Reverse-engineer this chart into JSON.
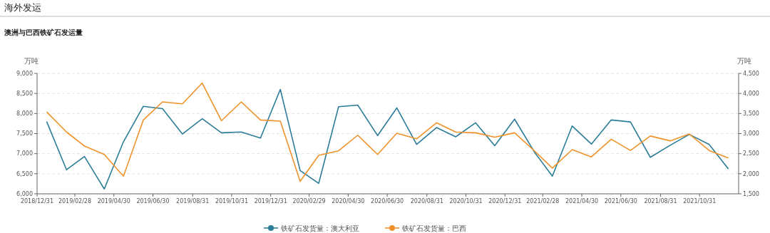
{
  "chart_data": {
    "type": "line",
    "title": "海外发运",
    "subtitle": "澳洲与巴西铁矿石发运量",
    "ylabel": "万吨",
    "y2label": "万吨",
    "x": [
      "2019-01-15",
      "2019-02-15",
      "2019-03-15",
      "2019-04-15",
      "2019-05-15",
      "2019-06-15",
      "2019-07-15",
      "2019-08-15",
      "2019-09-15",
      "2019-10-15",
      "2019-11-15",
      "2019-12-15",
      "2020-01-15",
      "2020-02-15",
      "2020-03-15",
      "2020-04-15",
      "2020-05-15",
      "2020-06-15",
      "2020-07-15",
      "2020-08-15",
      "2020-09-15",
      "2020-10-15",
      "2020-11-15",
      "2020-12-15",
      "2021-01-15",
      "2021-02-15",
      "2021-03-15",
      "2021-04-15",
      "2021-05-15",
      "2021-06-15",
      "2021-07-15",
      "2021-08-15",
      "2021-09-15",
      "2021-10-15",
      "2021-11-15",
      "2021-12-15"
    ],
    "xlim": [
      "2018-12-31",
      "2021-12-31"
    ],
    "xticks": [
      {
        "value": "2018-12-31",
        "label": "2018/12/31"
      },
      {
        "value": "2019-02-28",
        "label": "2019/02/28"
      },
      {
        "value": "2019-04-30",
        "label": "2019/04/30"
      },
      {
        "value": "2019-06-30",
        "label": "2019/06/30"
      },
      {
        "value": "2019-08-31",
        "label": "2019/08/31"
      },
      {
        "value": "2019-10-31",
        "label": "2019/10/31"
      },
      {
        "value": "2019-12-31",
        "label": "2019/12/31"
      },
      {
        "value": "2020-02-29",
        "label": "2020/02/29"
      },
      {
        "value": "2020-04-30",
        "label": "2020/04/30"
      },
      {
        "value": "2020-06-30",
        "label": "2020/06/30"
      },
      {
        "value": "2020-08-31",
        "label": "2020/08/31"
      },
      {
        "value": "2020-10-31",
        "label": "2020/10/31"
      },
      {
        "value": "2020-12-31",
        "label": "2020/12/31"
      },
      {
        "value": "2021-02-28",
        "label": "2021/02/28"
      },
      {
        "value": "2021-04-30",
        "label": "2021/04/30"
      },
      {
        "value": "2021-06-30",
        "label": "2021/06/30"
      },
      {
        "value": "2021-08-31",
        "label": "2021/08/31"
      },
      {
        "value": "2021-10-31",
        "label": "2021/10/31"
      }
    ],
    "ylim": [
      6000,
      9000
    ],
    "yticks": [
      {
        "value": 6000,
        "label": "6,000"
      },
      {
        "value": 6500,
        "label": "6,500"
      },
      {
        "value": 7000,
        "label": "7,000"
      },
      {
        "value": 7500,
        "label": "7,500"
      },
      {
        "value": 8000,
        "label": "8,000"
      },
      {
        "value": 8500,
        "label": "8,500"
      },
      {
        "value": 9000,
        "label": "9,000"
      }
    ],
    "y2lim": [
      1500,
      4500
    ],
    "y2ticks": [
      {
        "value": 1500,
        "label": "1,500"
      },
      {
        "value": 2000,
        "label": "2,000"
      },
      {
        "value": 2500,
        "label": "2,500"
      },
      {
        "value": 3000,
        "label": "3,000"
      },
      {
        "value": 3500,
        "label": "3,500"
      },
      {
        "value": 4000,
        "label": "4,000"
      },
      {
        "value": 4500,
        "label": "4,500"
      }
    ],
    "grid": "y",
    "legend": "bottom",
    "series": [
      {
        "name": "铁矿石发货量：澳大利亚",
        "color": "#2b7c98",
        "values": [
          7800,
          6600,
          6930,
          6120,
          7300,
          8180,
          8120,
          7490,
          7870,
          7520,
          7540,
          7390,
          8600,
          6580,
          6260,
          8170,
          8210,
          7450,
          8140,
          7230,
          7650,
          7420,
          7770,
          7200,
          7860,
          7040,
          6440,
          7690,
          7240,
          7840,
          7790,
          6910,
          7210,
          7480,
          7230,
          6620
        ]
      },
      {
        "name": "铁矿石发货量：巴西",
        "color": "#f0922a",
        "axis": "y2",
        "values": [
          3540,
          3040,
          2690,
          2480,
          1940,
          3340,
          3790,
          3740,
          4260,
          3320,
          3790,
          3340,
          3310,
          1810,
          2460,
          2570,
          2960,
          2480,
          3010,
          2870,
          3270,
          3040,
          3020,
          2910,
          3020,
          2570,
          2140,
          2600,
          2420,
          2860,
          2580,
          2940,
          2820,
          2990,
          2580,
          2390
        ]
      }
    ]
  }
}
